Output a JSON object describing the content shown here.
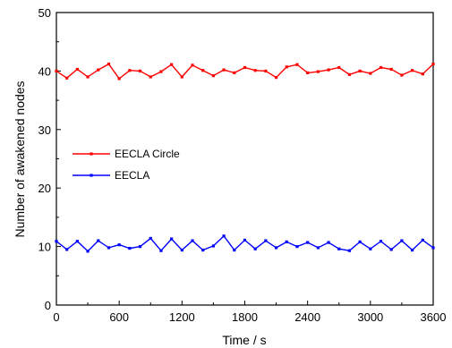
{
  "chart_data": {
    "type": "line",
    "title": "",
    "xlabel": "Time / s",
    "ylabel": "Number of awakened nodes",
    "xlim": [
      0,
      3600
    ],
    "ylim": [
      0,
      50
    ],
    "xticks": [
      0,
      600,
      1200,
      1800,
      2400,
      3000,
      3600
    ],
    "yticks": [
      0,
      10,
      20,
      30,
      40,
      50
    ],
    "grid": false,
    "legend": "center-left",
    "x": [
      0,
      100,
      200,
      300,
      400,
      500,
      600,
      700,
      800,
      900,
      1000,
      1100,
      1200,
      1300,
      1400,
      1500,
      1600,
      1700,
      1800,
      1900,
      2000,
      2100,
      2200,
      2300,
      2400,
      2500,
      2600,
      2700,
      2800,
      2900,
      3000,
      3100,
      3200,
      3300,
      3400,
      3500,
      3600
    ],
    "series": [
      {
        "name": "EECLA Circle",
        "color": "#ff0000",
        "values": [
          40.0,
          38.8,
          40.3,
          39.0,
          40.2,
          41.2,
          38.7,
          40.1,
          40.0,
          39.0,
          39.9,
          41.1,
          39.0,
          41.0,
          40.1,
          39.2,
          40.2,
          39.7,
          40.6,
          40.1,
          40.0,
          38.9,
          40.7,
          41.1,
          39.7,
          39.9,
          40.2,
          40.6,
          39.4,
          40.0,
          39.6,
          40.6,
          40.3,
          39.3,
          40.1,
          39.5,
          41.2
        ]
      },
      {
        "name": "EECLA",
        "color": "#0000ff",
        "values": [
          10.9,
          9.5,
          10.9,
          9.2,
          11.0,
          9.8,
          10.3,
          9.7,
          10.0,
          11.4,
          9.3,
          11.3,
          9.4,
          11.0,
          9.4,
          10.1,
          11.8,
          9.4,
          11.1,
          9.6,
          11.0,
          9.8,
          10.8,
          10.0,
          10.7,
          9.8,
          10.7,
          9.6,
          9.3,
          10.8,
          9.6,
          10.9,
          9.5,
          11.0,
          9.4,
          11.1,
          9.8
        ]
      }
    ]
  }
}
